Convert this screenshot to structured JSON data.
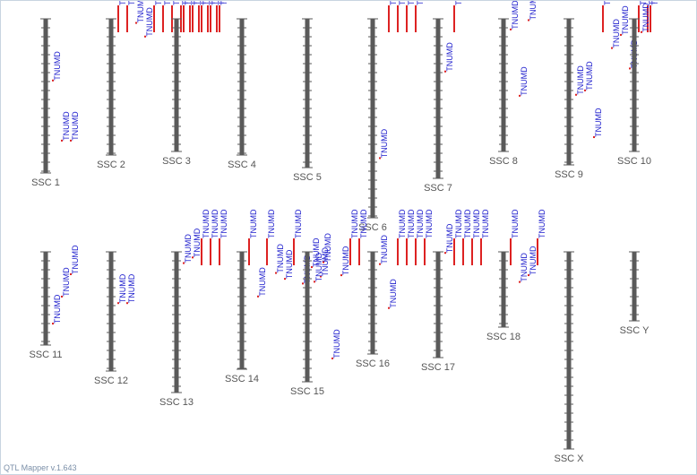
{
  "app": {
    "footer": "QTL Mapper v.1.643"
  },
  "colors": {
    "chromosome": "#5a5a5a",
    "tick": "#5a5a5a",
    "qtl_bar": "#dd2222",
    "qtl_label": "#1a1acc",
    "chrom_label": "#555555",
    "border": "#c8d4e0"
  },
  "chromosomes": [
    {
      "name": "SSC 1",
      "qtls": [
        {
          "label": "TNUMD",
          "type": "pt",
          "pos": 0.4
        },
        {
          "label": "TNUMD",
          "type": "pt",
          "pos": 0.79
        },
        {
          "label": "TNUMD",
          "type": "pt",
          "pos": 0.79
        }
      ]
    },
    {
      "name": "SSC 2",
      "qtls": [
        {
          "label": "TNUMD",
          "type": "bar"
        },
        {
          "label": "TNUMD",
          "type": "bar"
        },
        {
          "label": "TNUMD",
          "type": "pt",
          "pos": 0.03
        },
        {
          "label": "TNUMD",
          "type": "pt",
          "pos": 0.13
        },
        {
          "label": "TNUMD",
          "type": "bar"
        },
        {
          "label": "TNUMD",
          "type": "bar"
        },
        {
          "label": "TNUMD",
          "type": "bar"
        },
        {
          "label": "TNUMD",
          "type": "bar"
        },
        {
          "label": "TNUMD",
          "type": "bar"
        },
        {
          "label": "TNUMD",
          "type": "bar"
        },
        {
          "label": "TNUMD",
          "type": "bar"
        },
        {
          "label": "TNUMD",
          "type": "bar"
        }
      ]
    },
    {
      "name": "SSC 3",
      "qtls": [
        {
          "label": "TNUMD",
          "type": "bar"
        },
        {
          "label": "TNUMD",
          "type": "bar"
        },
        {
          "label": "TNUMD",
          "type": "bar"
        },
        {
          "label": "TNUMD",
          "type": "bar"
        },
        {
          "label": "TNUMD",
          "type": "bar"
        }
      ]
    },
    {
      "name": "SSC 4",
      "qtls": []
    },
    {
      "name": "SSC 5",
      "qtls": []
    },
    {
      "name": "SSC 6",
      "qtls": [
        {
          "label": "TNUMD",
          "type": "pt",
          "pos": 0.7
        },
        {
          "label": "TNUMD",
          "type": "bar"
        },
        {
          "label": "TNUMD",
          "type": "bar"
        },
        {
          "label": "TNUMD",
          "type": "bar"
        },
        {
          "label": "TNUMD",
          "type": "bar"
        }
      ]
    },
    {
      "name": "SSC 7",
      "qtls": [
        {
          "label": "TNUMD",
          "type": "pt",
          "pos": 0.33
        },
        {
          "label": "TNUMD",
          "type": "bar"
        }
      ]
    },
    {
      "name": "SSC 8",
      "qtls": [
        {
          "label": "TNUMD",
          "type": "pt",
          "pos": 0.08
        },
        {
          "label": "TNUMD",
          "type": "pt",
          "pos": 0.58
        },
        {
          "label": "TNUMD",
          "type": "pt",
          "pos": 0.01
        }
      ]
    },
    {
      "name": "SSC 9",
      "qtls": [
        {
          "label": "TNUMD",
          "type": "pt",
          "pos": 0.52
        },
        {
          "label": "TNUMD",
          "type": "pt",
          "pos": 0.49
        },
        {
          "label": "TNUMD",
          "type": "pt",
          "pos": 0.81
        },
        {
          "label": "TNUMD",
          "type": "bar"
        },
        {
          "label": "TNUMD",
          "type": "pt",
          "pos": 0.2
        },
        {
          "label": "TNUMD",
          "type": "pt",
          "pos": 0.11
        },
        {
          "label": "TNUMD",
          "type": "pt",
          "pos": 0.34
        },
        {
          "label": "TNUMD",
          "type": "bar"
        },
        {
          "label": "TNUMD",
          "type": "bar"
        }
      ]
    },
    {
      "name": "SSC 10",
      "qtls": [
        {
          "label": "TNUMD",
          "type": "pt",
          "pos": 0.1
        },
        {
          "label": "TNUMD",
          "type": "bar"
        }
      ]
    },
    {
      "name": "SSC 11",
      "qtls": [
        {
          "label": "TNUMD",
          "type": "pt",
          "pos": 0.77
        },
        {
          "label": "TNUMD",
          "type": "pt",
          "pos": 0.48
        },
        {
          "label": "TNUMD",
          "type": "pt",
          "pos": 0.24
        }
      ]
    },
    {
      "name": "SSC 12",
      "qtls": [
        {
          "label": "TNUMD",
          "type": "pt",
          "pos": 0.43
        },
        {
          "label": "TNUMD",
          "type": "pt",
          "pos": 0.43
        }
      ]
    },
    {
      "name": "SSC 13",
      "qtls": [
        {
          "label": "TNUMD",
          "type": "pt",
          "pos": 0.08
        },
        {
          "label": "TNUMD",
          "type": "pt",
          "pos": 0.04
        },
        {
          "label": "TNUMD",
          "type": "bar"
        },
        {
          "label": "TNUMD",
          "type": "bar"
        },
        {
          "label": "TNUMD",
          "type": "bar"
        }
      ]
    },
    {
      "name": "SSC 14",
      "qtls": [
        {
          "label": "TNUMD",
          "type": "bar"
        },
        {
          "label": "TNUMD",
          "type": "pt",
          "pos": 0.38
        },
        {
          "label": "TNUMD",
          "type": "bar"
        },
        {
          "label": "TNUMD",
          "type": "pt",
          "pos": 0.18
        },
        {
          "label": "TNUMD",
          "type": "pt",
          "pos": 0.23
        },
        {
          "label": "TNUMD",
          "type": "bar"
        },
        {
          "label": "TNUMD",
          "type": "pt",
          "pos": 0.27
        },
        {
          "label": "TNUMD",
          "type": "pt",
          "pos": 0.13
        },
        {
          "label": "TNUMD",
          "type": "pt",
          "pos": 0.21
        }
      ]
    },
    {
      "name": "SSC 15",
      "qtls": [
        {
          "label": "TNUMD",
          "type": "pt",
          "pos": 0.23
        },
        {
          "label": "TNUMD",
          "type": "pt",
          "pos": 0.08
        },
        {
          "label": "TNUMD",
          "type": "pt",
          "pos": 0.82
        },
        {
          "label": "TNUMD",
          "type": "pt",
          "pos": 0.18
        },
        {
          "label": "TNUMD",
          "type": "bar"
        },
        {
          "label": "TNUMD",
          "type": "bar"
        }
      ]
    },
    {
      "name": "SSC 16",
      "qtls": [
        {
          "label": "TNUMD",
          "type": "pt",
          "pos": 0.12
        },
        {
          "label": "TNUMD",
          "type": "pt",
          "pos": 0.55
        },
        {
          "label": "TNUMD",
          "type": "bar"
        },
        {
          "label": "TNUMD",
          "type": "bar"
        },
        {
          "label": "TNUMD",
          "type": "bar"
        },
        {
          "label": "TNUMD",
          "type": "bar"
        }
      ]
    },
    {
      "name": "SSC 17",
      "qtls": [
        {
          "label": "TNUMD",
          "type": "pt",
          "pos": 0.01
        },
        {
          "label": "TNUMD",
          "type": "bar"
        },
        {
          "label": "TNUMD",
          "type": "bar"
        },
        {
          "label": "TNUMD",
          "type": "bar"
        },
        {
          "label": "TNUMD",
          "type": "bar"
        }
      ]
    },
    {
      "name": "SSC 18",
      "qtls": [
        {
          "label": "TNUMD",
          "type": "bar"
        },
        {
          "label": "TNUMD",
          "type": "pt",
          "pos": 0.4
        },
        {
          "label": "TNUMD",
          "type": "pt",
          "pos": 0.31
        },
        {
          "label": "TNUMD",
          "type": "bar"
        }
      ]
    },
    {
      "name": "SSC X",
      "qtls": []
    },
    {
      "name": "SSC Y",
      "qtls": []
    }
  ]
}
